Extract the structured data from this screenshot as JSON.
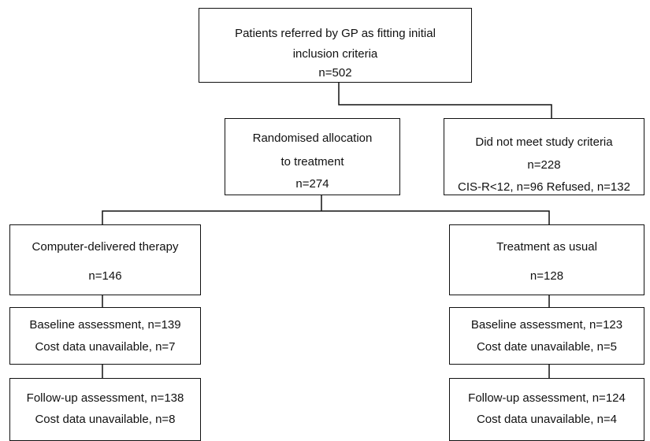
{
  "nodes": [
    {
      "lines": [
        "Patients referred by GP as fitting initial",
        "inclusion criteria",
        "n=502"
      ]
    },
    {
      "lines": [
        "Randomised allocation",
        "to treatment",
        "n=274"
      ]
    },
    {
      "lines": [
        "Did not meet study criteria",
        "n=228",
        "CIS-R<12, n=96  Refused, n=132"
      ]
    },
    {
      "lines": [
        "Computer-delivered therapy",
        "n=146"
      ]
    },
    {
      "lines": [
        "Treatment as usual",
        "n=128"
      ]
    },
    {
      "lines": [
        "Baseline assessment, n=139",
        "Cost data unavailable, n=7"
      ]
    },
    {
      "lines": [
        "Baseline assessment, n=123",
        "Cost date unavailable, n=5"
      ]
    },
    {
      "lines": [
        "Follow-up assessment, n=138",
        "Cost data unavailable, n=8"
      ]
    },
    {
      "lines": [
        "Follow-up assessment, n=124",
        "Cost data unavailable, n=4"
      ]
    }
  ]
}
